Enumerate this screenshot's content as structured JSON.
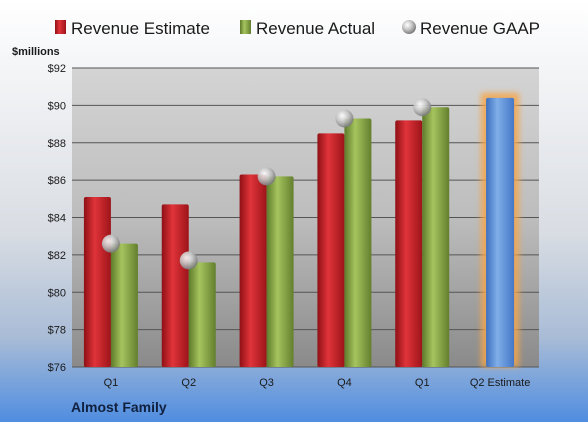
{
  "chart_data": {
    "type": "bar",
    "ylabel": "$millions",
    "company": "Almost Family",
    "categories": [
      "Q1",
      "Q2",
      "Q3",
      "Q4",
      "Q1",
      "Q2 Estimate"
    ],
    "ylim": [
      76,
      92
    ],
    "yticks": [
      "$76",
      "$78",
      "$80",
      "$82",
      "$84",
      "$86",
      "$88",
      "$90",
      "$92"
    ],
    "ytick_values": [
      76,
      78,
      80,
      82,
      84,
      86,
      88,
      90,
      92
    ],
    "grid": true,
    "legend_position": "top",
    "series": [
      {
        "name": "Revenue Estimate",
        "type": "bar",
        "color": "#c8202a",
        "values": [
          85.1,
          84.7,
          86.3,
          88.5,
          89.2,
          null
        ]
      },
      {
        "name": "Revenue Actual",
        "type": "bar",
        "color": "#8aa846",
        "values": [
          82.6,
          81.6,
          86.2,
          89.3,
          89.9,
          null
        ]
      },
      {
        "name": "Revenue GAAP",
        "type": "marker",
        "color": "#b8b8b8",
        "values": [
          82.6,
          81.7,
          86.2,
          89.3,
          89.9,
          null
        ]
      },
      {
        "name": "Q2 Estimate",
        "type": "bar",
        "color": "#5b8fd6",
        "highlight": "#f5a64a",
        "values": [
          null,
          null,
          null,
          null,
          null,
          90.4
        ]
      }
    ]
  }
}
